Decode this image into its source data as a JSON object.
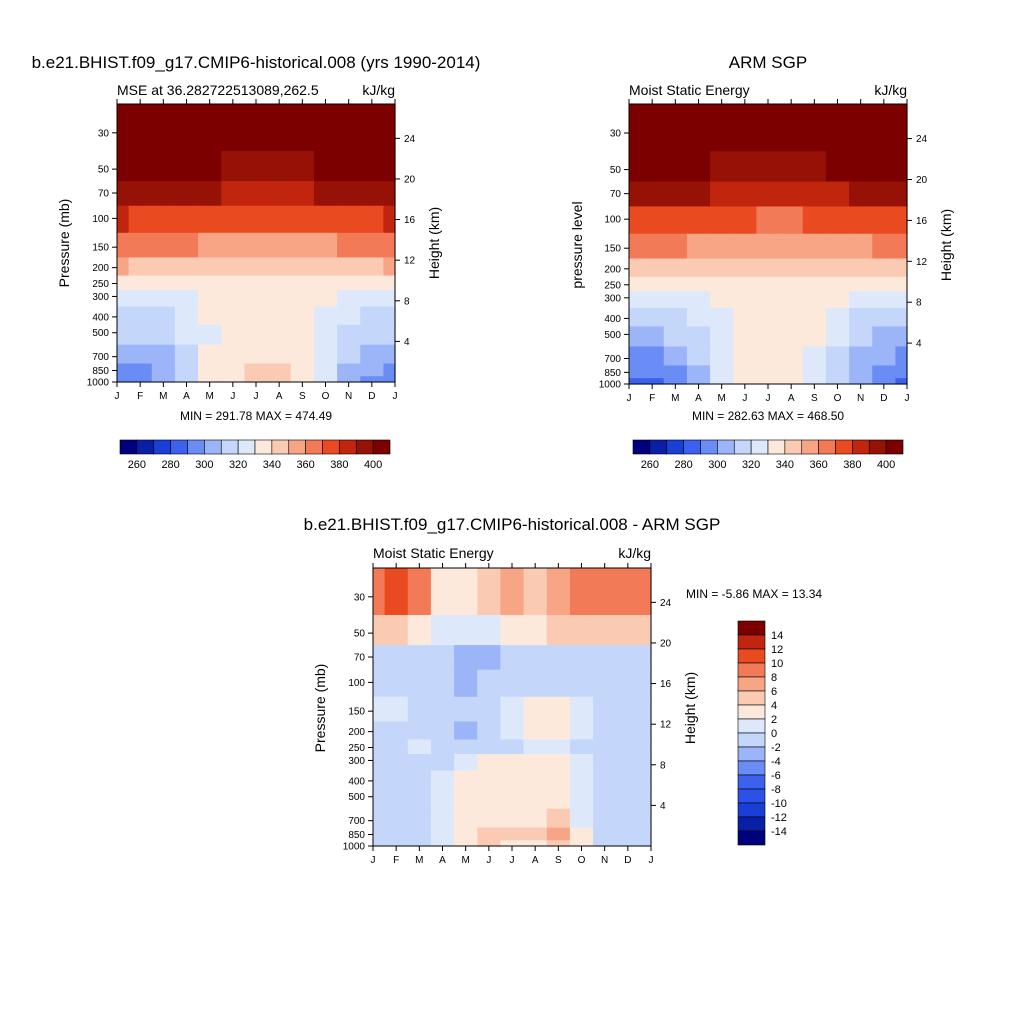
{
  "chart_data": [
    {
      "type": "heatmap",
      "title": "b.e21.BHIST.f09_g17.CMIP6-historical.008 (yrs 1990-2014)",
      "left_string": "MSE at 36.282722513089,262.5",
      "right_string": "kJ/kg",
      "ylabel": "Pressure (mb)",
      "y2label": "Height (km)",
      "x_ticks": [
        "J",
        "F",
        "M",
        "A",
        "M",
        "J",
        "J",
        "A",
        "S",
        "O",
        "N",
        "D",
        "J"
      ],
      "y_ticks": [
        "30",
        "50",
        "70",
        "100",
        "150",
        "200",
        "250",
        "300",
        "400",
        "500",
        "700",
        "850",
        "1000"
      ],
      "y_tick_values": [
        30,
        50,
        70,
        100,
        150,
        200,
        250,
        300,
        400,
        500,
        700,
        850,
        1000
      ],
      "y2_ticks": [
        "24",
        "20",
        "16",
        "12",
        "8",
        "4"
      ],
      "y2_tick_values": [
        24,
        20,
        16,
        12,
        8,
        4
      ],
      "ylim": [
        1000,
        20
      ],
      "stats": "MIN = 291.78 MAX = 474.49",
      "levels": [
        260,
        270,
        280,
        290,
        300,
        310,
        320,
        330,
        340,
        350,
        360,
        370,
        380,
        390,
        400
      ],
      "colorbar_labels": [
        "260",
        "280",
        "300",
        "320",
        "340",
        "360",
        "380",
        "400"
      ],
      "colors": [
        "#00007f",
        "#0a1fa8",
        "#1a3fd6",
        "#3a62ee",
        "#6a8df5",
        "#9cb5f8",
        "#c4d7fb",
        "#dde9fb",
        "#fde9dc",
        "#fbcab2",
        "#f7a585",
        "#f27a57",
        "#e94a1f",
        "#c2250d",
        "#961206",
        "#7d0000"
      ],
      "values": [
        [
          430,
          430,
          430,
          430,
          430,
          430,
          430,
          430,
          430,
          430,
          430,
          430,
          430
        ],
        [
          405,
          404,
          403,
          402,
          400,
          399,
          398,
          398,
          399,
          401,
          402,
          404,
          405
        ],
        [
          395,
          394,
          393,
          392,
          390,
          389,
          388,
          388,
          389,
          390,
          392,
          393,
          395
        ],
        [
          380,
          379,
          378,
          376,
          374,
          372,
          371,
          371,
          372,
          374,
          376,
          378,
          380
        ],
        [
          366,
          365,
          363,
          361,
          358,
          356,
          355,
          355,
          356,
          358,
          361,
          363,
          366
        ],
        [
          350,
          349,
          348,
          347,
          346,
          345,
          345,
          345,
          345,
          346,
          347,
          348,
          350
        ],
        [
          331,
          330,
          331,
          332,
          335,
          337,
          338,
          338,
          337,
          334,
          332,
          330,
          331
        ],
        [
          323,
          323,
          324,
          327,
          332,
          336,
          338,
          338,
          335,
          330,
          326,
          323,
          323
        ],
        [
          316,
          315,
          317,
          322,
          330,
          335,
          337,
          337,
          334,
          327,
          320,
          316,
          316
        ],
        [
          313,
          312,
          314,
          320,
          329,
          335,
          337,
          337,
          333,
          324,
          317,
          313,
          313
        ],
        [
          302,
          303,
          308,
          318,
          330,
          336,
          338,
          338,
          334,
          322,
          312,
          304,
          302
        ],
        [
          297,
          297,
          302,
          315,
          330,
          338,
          341,
          340,
          334,
          321,
          309,
          300,
          297
        ],
        [
          295,
          294,
          300,
          314,
          330,
          339,
          342,
          341,
          335,
          320,
          308,
          298,
          295
        ]
      ]
    },
    {
      "type": "heatmap",
      "title": "ARM SGP",
      "left_string": "Moist Static Energy",
      "right_string": "kJ/kg",
      "ylabel": "pressure level",
      "y2label": "Height (km)",
      "x_ticks": [
        "J",
        "F",
        "M",
        "A",
        "M",
        "J",
        "J",
        "A",
        "S",
        "O",
        "N",
        "D",
        "J"
      ],
      "y_ticks": [
        "30",
        "50",
        "70",
        "100",
        "150",
        "200",
        "250",
        "300",
        "400",
        "500",
        "700",
        "850",
        "1000"
      ],
      "y_tick_values": [
        30,
        50,
        70,
        100,
        150,
        200,
        250,
        300,
        400,
        500,
        700,
        850,
        1000
      ],
      "y2_ticks": [
        "24",
        "20",
        "16",
        "12",
        "8",
        "4"
      ],
      "y2_tick_values": [
        24,
        20,
        16,
        12,
        8,
        4
      ],
      "ylim": [
        1000,
        20
      ],
      "stats": "MIN = 282.63 MAX = 468.50",
      "levels": [
        260,
        270,
        280,
        290,
        300,
        310,
        320,
        330,
        340,
        350,
        360,
        370,
        380,
        390,
        400
      ],
      "colorbar_labels": [
        "260",
        "280",
        "300",
        "320",
        "340",
        "360",
        "380",
        "400"
      ],
      "colors": [
        "#00007f",
        "#0a1fa8",
        "#1a3fd6",
        "#3a62ee",
        "#6a8df5",
        "#9cb5f8",
        "#c4d7fb",
        "#dde9fb",
        "#fde9dc",
        "#fbcab2",
        "#f7a585",
        "#f27a57",
        "#e94a1f",
        "#c2250d",
        "#961206",
        "#7d0000"
      ],
      "values": [
        [
          425,
          425,
          425,
          425,
          425,
          425,
          425,
          425,
          425,
          425,
          425,
          425,
          425
        ],
        [
          404,
          403,
          402,
          401,
          399,
          398,
          397,
          397,
          398,
          400,
          401,
          403,
          404
        ],
        [
          394,
          393,
          392,
          391,
          389,
          388,
          387,
          387,
          388,
          389,
          391,
          392,
          394
        ],
        [
          378,
          377,
          376,
          374,
          372,
          370,
          369,
          369,
          370,
          372,
          374,
          376,
          378
        ],
        [
          364,
          363,
          361,
          359,
          356,
          354,
          353,
          353,
          354,
          356,
          359,
          361,
          364
        ],
        [
          345,
          344,
          344,
          343,
          342,
          341,
          341,
          341,
          341,
          342,
          343,
          344,
          345
        ],
        [
          331,
          330,
          331,
          332,
          334,
          337,
          338,
          338,
          337,
          334,
          332,
          330,
          331
        ],
        [
          325,
          324,
          325,
          328,
          333,
          336,
          338,
          338,
          335,
          330,
          327,
          324,
          325
        ],
        [
          313,
          312,
          314,
          320,
          327,
          333,
          336,
          336,
          332,
          325,
          318,
          313,
          313
        ],
        [
          309,
          308,
          310,
          316,
          324,
          330,
          333,
          333,
          330,
          322,
          314,
          309,
          309
        ],
        [
          298,
          298,
          302,
          312,
          322,
          330,
          334,
          333,
          328,
          318,
          308,
          300,
          298
        ],
        [
          292,
          292,
          296,
          308,
          322,
          332,
          336,
          335,
          328,
          316,
          304,
          295,
          292
        ],
        [
          288,
          288,
          294,
          306,
          322,
          333,
          338,
          336,
          329,
          315,
          302,
          292,
          288
        ]
      ]
    },
    {
      "type": "heatmap",
      "title": "b.e21.BHIST.f09_g17.CMIP6-historical.008 - ARM SGP",
      "left_string": "Moist Static Energy",
      "right_string": "kJ/kg",
      "ylabel": "Pressure (mb)",
      "y2label": "Height (km)",
      "x_ticks": [
        "J",
        "F",
        "M",
        "A",
        "M",
        "J",
        "J",
        "A",
        "S",
        "O",
        "N",
        "D",
        "J"
      ],
      "y_ticks": [
        "30",
        "50",
        "70",
        "100",
        "150",
        "200",
        "250",
        "300",
        "400",
        "500",
        "700",
        "850",
        "1000"
      ],
      "y_tick_values": [
        30,
        50,
        70,
        100,
        150,
        200,
        250,
        300,
        400,
        500,
        700,
        850,
        1000
      ],
      "y2_ticks": [
        "24",
        "20",
        "16",
        "12",
        "8",
        "4"
      ],
      "y2_tick_values": [
        24,
        20,
        16,
        12,
        8,
        4
      ],
      "ylim": [
        1000,
        20
      ],
      "stats": "MIN =  -5.86 MAX =  13.34",
      "levels": [
        -14,
        -12,
        -10,
        -8,
        -6,
        -4,
        -2,
        0,
        2,
        4,
        6,
        8,
        10,
        12,
        14
      ],
      "colorbar_labels": [
        "14",
        "12",
        "10",
        "8",
        "6",
        "4",
        "2",
        "0",
        "-2",
        "-4",
        "-6",
        "-8",
        "-10",
        "-12",
        "-14"
      ],
      "colors": [
        "#00007f",
        "#0a1fa8",
        "#1a3fd6",
        "#2c50e8",
        "#3a62ee",
        "#6a8df5",
        "#9cb5f8",
        "#c4d7fb",
        "#dde9fb",
        "#fde9dc",
        "#fbcab2",
        "#f7a585",
        "#f27a57",
        "#e94a1f",
        "#c2250d",
        "#7d0000"
      ],
      "values": [
        [
          9,
          10,
          8,
          3,
          2,
          4,
          6,
          5,
          7,
          9,
          8,
          9,
          9
        ],
        [
          4,
          5,
          3,
          1,
          0,
          1,
          3,
          2,
          4,
          5,
          4,
          5,
          4
        ],
        [
          -1,
          -1,
          -1,
          -2,
          -3,
          -3,
          -1,
          -1,
          -1,
          -1,
          -1,
          -2,
          -1
        ],
        [
          -1,
          -1,
          -1,
          -2,
          -4,
          -2,
          -1,
          -1,
          -1,
          -1,
          -1,
          -1,
          -1
        ],
        [
          1,
          0,
          -1,
          -1,
          -1,
          -1,
          1,
          3,
          2,
          1,
          -1,
          -1,
          -1
        ],
        [
          -1,
          -1,
          -1,
          -1,
          -3,
          -1,
          1,
          3,
          3,
          1,
          -1,
          -1,
          -1
        ],
        [
          -1,
          -1,
          1,
          -1,
          -1,
          -1,
          -1,
          1,
          1,
          -1,
          -1,
          -1,
          -1
        ],
        [
          -1,
          -1,
          -1,
          -1,
          1,
          2,
          2,
          2,
          2,
          1,
          -1,
          -1,
          -1
        ],
        [
          -1,
          -1,
          -1,
          1,
          2,
          2,
          2,
          2,
          3,
          1,
          -1,
          -1,
          -1
        ],
        [
          -1,
          -1,
          -1,
          1,
          2,
          2,
          2,
          2,
          3,
          1,
          -1,
          -1,
          -1
        ],
        [
          -1,
          -1,
          -1,
          1,
          2,
          3,
          3,
          3,
          4,
          1,
          -1,
          -1,
          -1
        ],
        [
          -1,
          -1,
          -1,
          1,
          3,
          4,
          4,
          4,
          6,
          2,
          -1,
          -1,
          -1
        ],
        [
          -1,
          -1,
          -1,
          1,
          2,
          4,
          3,
          3,
          4,
          2,
          -1,
          -1,
          -1
        ]
      ]
    }
  ]
}
